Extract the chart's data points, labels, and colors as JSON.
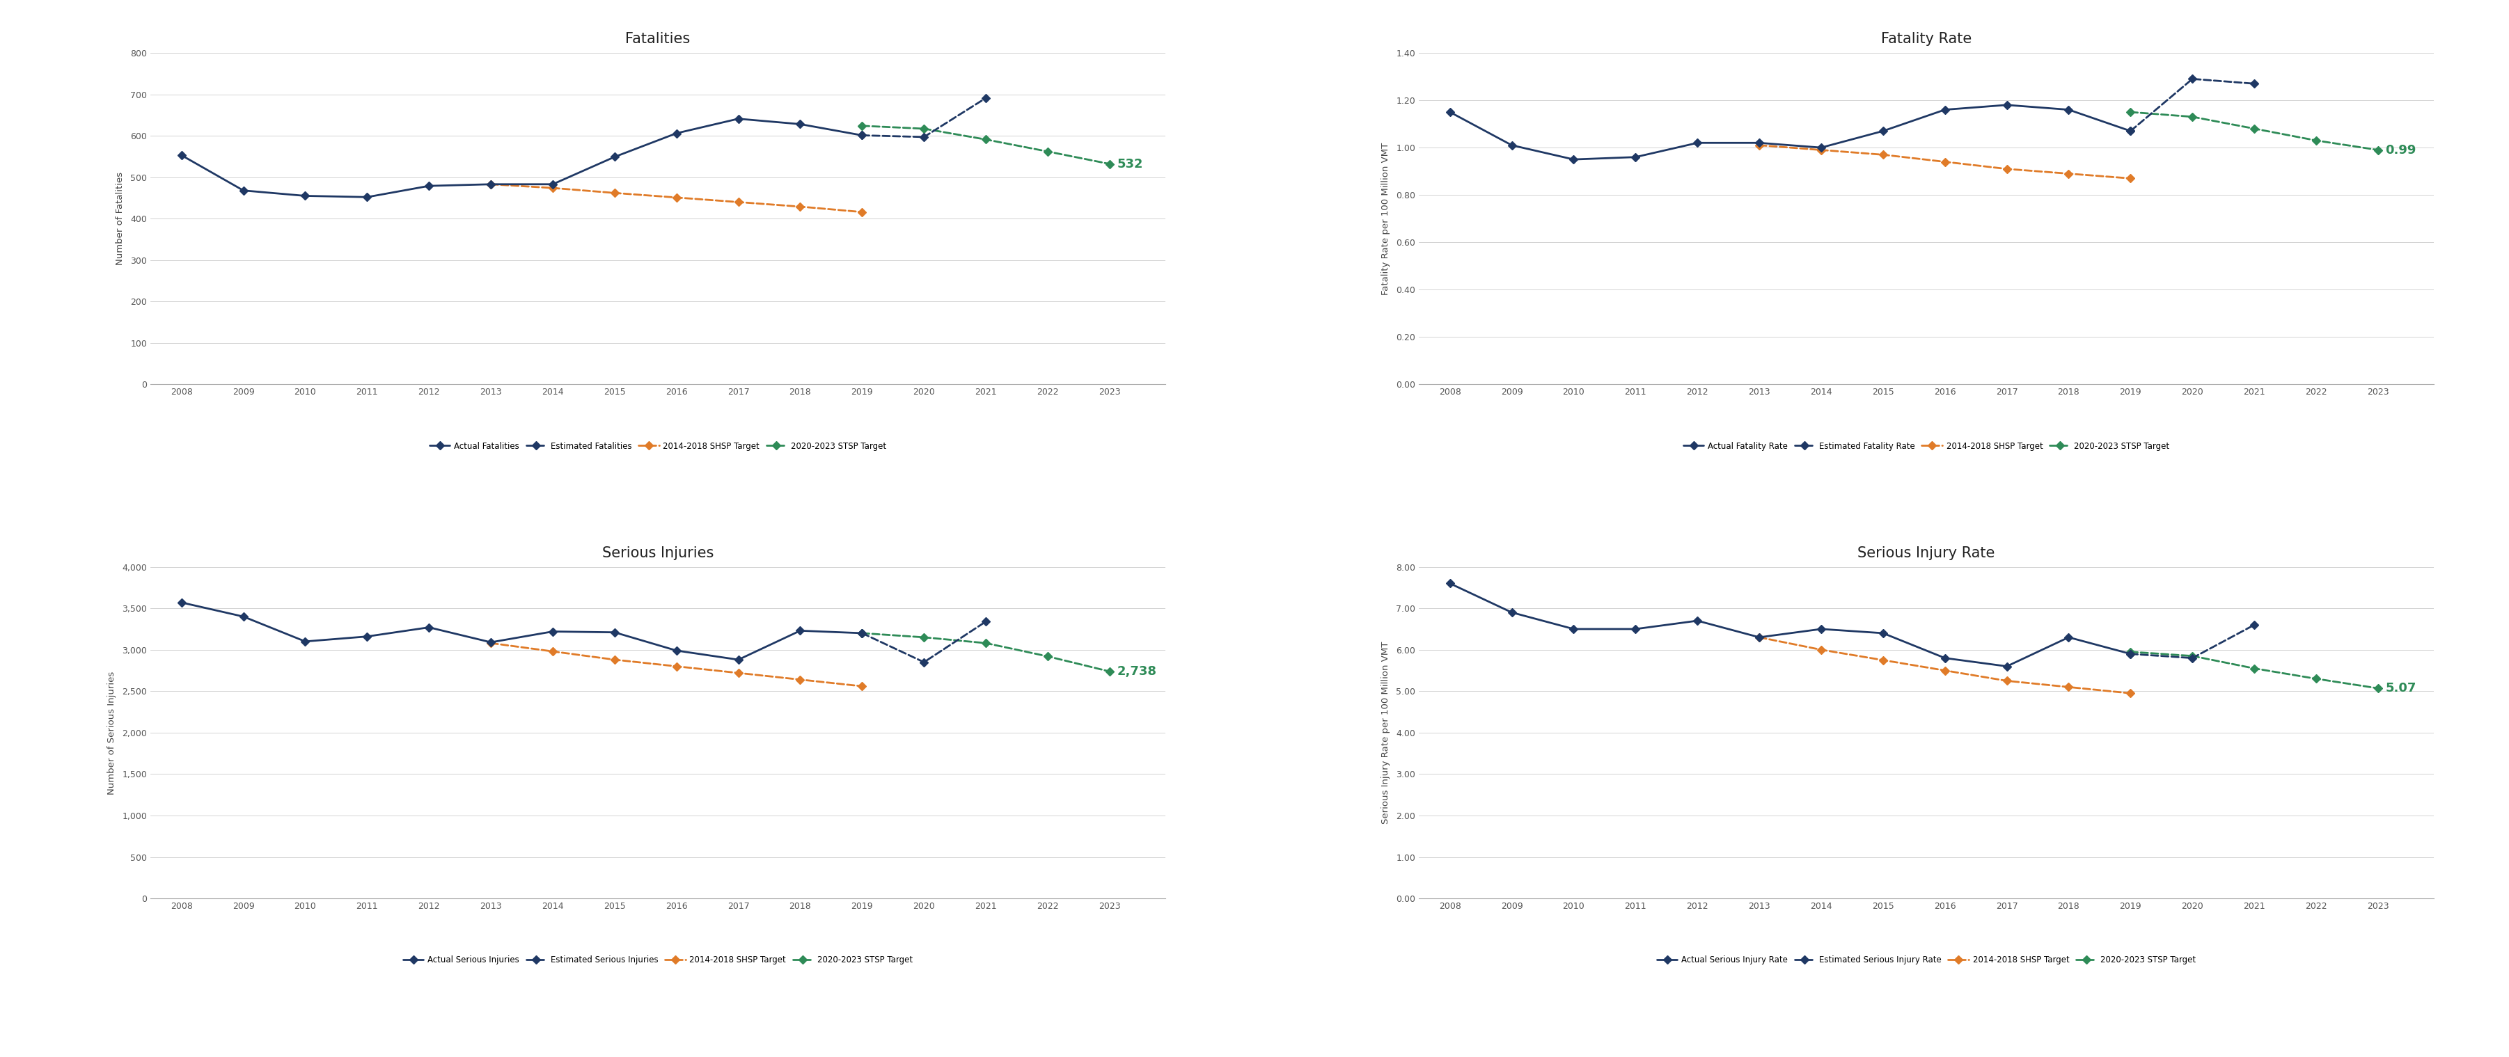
{
  "fatalities": {
    "title": "Fatalities",
    "ylabel": "Number of Fatalities",
    "ylim": [
      0,
      800
    ],
    "yticks": [
      0,
      100,
      200,
      300,
      400,
      500,
      600,
      700,
      800
    ],
    "actual_years": [
      2008,
      2009,
      2010,
      2011,
      2012,
      2013,
      2014,
      2015,
      2016,
      2017,
      2018,
      2019
    ],
    "actual_values": [
      553,
      468,
      455,
      452,
      479,
      483,
      483,
      549,
      606,
      641,
      628,
      601
    ],
    "estimated_years": [
      2019,
      2020,
      2021
    ],
    "estimated_values": [
      601,
      597,
      691
    ],
    "shsp_years": [
      2013,
      2014,
      2015,
      2016,
      2017,
      2018,
      2019
    ],
    "shsp_values": [
      483,
      474,
      462,
      451,
      440,
      429,
      416
    ],
    "stsp_years": [
      2019,
      2020,
      2021,
      2022,
      2023
    ],
    "stsp_values": [
      624,
      617,
      591,
      562,
      532
    ],
    "target_label": "532",
    "legend": [
      "Actual Fatalities",
      "Estimated Fatalities",
      "2014-2018 SHSP Target",
      "2020-2023 STSP Target"
    ]
  },
  "fatality_rate": {
    "title": "Fatality Rate",
    "ylabel": "Fatality Rate per 100 Million VMT",
    "ylim": [
      0.0,
      1.4
    ],
    "yticks": [
      0.0,
      0.2,
      0.4,
      0.6,
      0.8,
      1.0,
      1.2,
      1.4
    ],
    "actual_years": [
      2008,
      2009,
      2010,
      2011,
      2012,
      2013,
      2014,
      2015,
      2016,
      2017,
      2018,
      2019
    ],
    "actual_values": [
      1.15,
      1.01,
      0.95,
      0.96,
      1.02,
      1.02,
      1.0,
      1.07,
      1.16,
      1.18,
      1.16,
      1.07
    ],
    "estimated_years": [
      2019,
      2020,
      2021
    ],
    "estimated_values": [
      1.07,
      1.29,
      1.27
    ],
    "shsp_years": [
      2013,
      2014,
      2015,
      2016,
      2017,
      2018,
      2019
    ],
    "shsp_values": [
      1.01,
      0.99,
      0.97,
      0.94,
      0.91,
      0.89,
      0.87
    ],
    "stsp_years": [
      2019,
      2020,
      2021,
      2022,
      2023
    ],
    "stsp_values": [
      1.15,
      1.13,
      1.08,
      1.03,
      0.99
    ],
    "target_label": "0.99",
    "legend": [
      "Actual Fatality Rate",
      "Estimated Fatality Rate",
      "2014-2018 SHSP Target",
      "2020-2023 STSP Target"
    ]
  },
  "serious_injuries": {
    "title": "Serious Injuries",
    "ylabel": "Number of Serious Injuries",
    "ylim": [
      0,
      4000
    ],
    "yticks": [
      0,
      500,
      1000,
      1500,
      2000,
      2500,
      3000,
      3500,
      4000
    ],
    "actual_years": [
      2008,
      2009,
      2010,
      2011,
      2012,
      2013,
      2014,
      2015,
      2016,
      2017,
      2018,
      2019
    ],
    "actual_values": [
      3570,
      3400,
      3100,
      3160,
      3270,
      3090,
      3220,
      3210,
      2990,
      2880,
      3230,
      3200
    ],
    "estimated_years": [
      2019,
      2020,
      2021
    ],
    "estimated_values": [
      3200,
      2850,
      3340
    ],
    "shsp_years": [
      2013,
      2014,
      2015,
      2016,
      2017,
      2018,
      2019
    ],
    "shsp_values": [
      3080,
      2980,
      2880,
      2800,
      2720,
      2640,
      2560
    ],
    "stsp_years": [
      2019,
      2020,
      2021,
      2022,
      2023
    ],
    "stsp_values": [
      3200,
      3150,
      3080,
      2920,
      2738
    ],
    "target_label": "2,738",
    "legend": [
      "Actual Serious Injuries",
      "Estimated Serious Injuries",
      "2014-2018 SHSP Target",
      "2020-2023 STSP Target"
    ]
  },
  "serious_injury_rate": {
    "title": "Serious Injury Rate",
    "ylabel": "Serious Injury Rate per 100 Million VMT",
    "ylim": [
      0.0,
      8.0
    ],
    "yticks": [
      0.0,
      1.0,
      2.0,
      3.0,
      4.0,
      5.0,
      6.0,
      7.0,
      8.0
    ],
    "actual_years": [
      2008,
      2009,
      2010,
      2011,
      2012,
      2013,
      2014,
      2015,
      2016,
      2017,
      2018,
      2019
    ],
    "actual_values": [
      7.6,
      6.9,
      6.5,
      6.5,
      6.7,
      6.3,
      6.5,
      6.4,
      5.8,
      5.6,
      6.3,
      5.9
    ],
    "estimated_years": [
      2019,
      2020,
      2021
    ],
    "estimated_values": [
      5.9,
      5.8,
      6.6
    ],
    "shsp_years": [
      2013,
      2014,
      2015,
      2016,
      2017,
      2018,
      2019
    ],
    "shsp_values": [
      6.3,
      6.0,
      5.75,
      5.5,
      5.25,
      5.1,
      4.95
    ],
    "stsp_years": [
      2019,
      2020,
      2021,
      2022,
      2023
    ],
    "stsp_values": [
      5.95,
      5.85,
      5.55,
      5.3,
      5.07
    ],
    "target_label": "5.07",
    "legend": [
      "Actual Serious Injury Rate",
      "Estimated Serious Injury Rate",
      "2014-2018 SHSP Target",
      "2020-2023 STSP Target"
    ]
  },
  "colors": {
    "actual": "#1f3864",
    "estimated": "#1f3864",
    "shsp": "#e07b28",
    "stsp": "#2e8b57",
    "target_text": "#2e8b57"
  },
  "background": "#ffffff"
}
